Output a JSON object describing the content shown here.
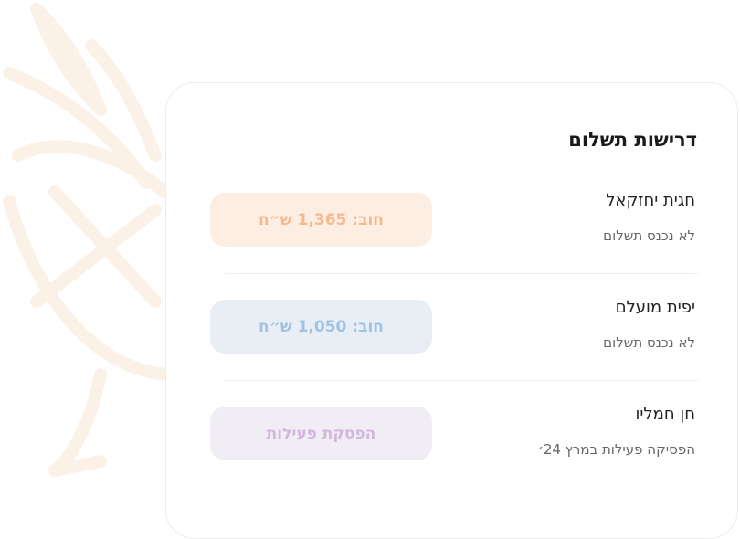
{
  "title": "דרישות תשלום",
  "rows": [
    {
      "name": "חגית יחזקאל",
      "status": "לא נכנס תשלום",
      "badge": "חוב: 1,365 ש״ח",
      "badge_bg": "#fdeee4",
      "badge_color": "#f7b88e"
    },
    {
      "name": "יפית מועלם",
      "status": "לא נכנס תשלום",
      "badge": "חוב: 1,050 ש״ח",
      "badge_bg": "#e9eef5",
      "badge_color": "#9cc2e4"
    },
    {
      "name": "חן חמליו",
      "status": "הפסיקה פעילות במרץ 24׳",
      "badge": "הפסקת פעילות",
      "badge_bg": "#f1edf5",
      "badge_color": "#d3b6df"
    }
  ]
}
